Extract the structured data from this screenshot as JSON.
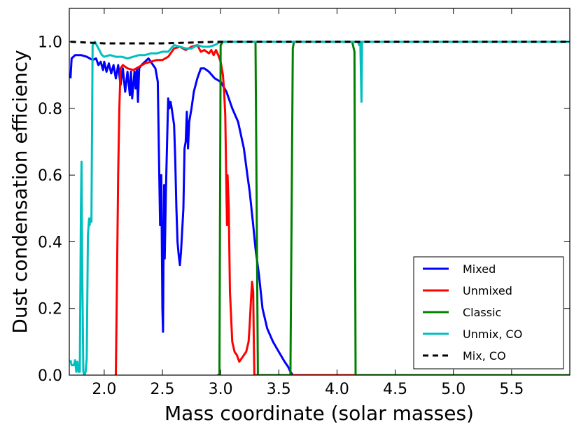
{
  "chart_data": {
    "type": "line",
    "title": "",
    "xlabel": "Mass coordinate (solar masses)",
    "ylabel": "Dust condensation efficiency",
    "xlim": [
      1.7,
      6.0
    ],
    "ylim": [
      0.0,
      1.1
    ],
    "xticks": [
      "2.0",
      "2.5",
      "3.0",
      "3.5",
      "4.0",
      "4.5",
      "5.0",
      "5.5"
    ],
    "yticks": [
      "0.0",
      "0.2",
      "0.4",
      "0.6",
      "0.8",
      "1.0"
    ],
    "grid": false,
    "legend_position": "lower-right",
    "series": [
      {
        "name": "Mixed",
        "color": "#0000ff",
        "dash": "solid",
        "points": [
          [
            1.71,
            0.89
          ],
          [
            1.72,
            0.95
          ],
          [
            1.75,
            0.96
          ],
          [
            1.8,
            0.96
          ],
          [
            1.85,
            0.955
          ],
          [
            1.9,
            0.945
          ],
          [
            1.93,
            0.95
          ],
          [
            1.95,
            0.93
          ],
          [
            1.97,
            0.94
          ],
          [
            1.99,
            0.915
          ],
          [
            2.0,
            0.94
          ],
          [
            2.02,
            0.91
          ],
          [
            2.04,
            0.935
          ],
          [
            2.06,
            0.905
          ],
          [
            2.08,
            0.93
          ],
          [
            2.1,
            0.89
          ],
          [
            2.12,
            0.93
          ],
          [
            2.14,
            0.87
          ],
          [
            2.16,
            0.92
          ],
          [
            2.18,
            0.85
          ],
          [
            2.2,
            0.91
          ],
          [
            2.22,
            0.84
          ],
          [
            2.23,
            0.91
          ],
          [
            2.24,
            0.83
          ],
          [
            2.26,
            0.91
          ],
          [
            2.27,
            0.86
          ],
          [
            2.28,
            0.92
          ],
          [
            2.29,
            0.82
          ],
          [
            2.3,
            0.92
          ],
          [
            2.32,
            0.93
          ],
          [
            2.35,
            0.94
          ],
          [
            2.38,
            0.95
          ],
          [
            2.4,
            0.94
          ],
          [
            2.42,
            0.93
          ],
          [
            2.44,
            0.92
          ],
          [
            2.46,
            0.88
          ],
          [
            2.48,
            0.45
          ],
          [
            2.49,
            0.6
          ],
          [
            2.5,
            0.2
          ],
          [
            2.505,
            0.13
          ],
          [
            2.51,
            0.4
          ],
          [
            2.515,
            0.57
          ],
          [
            2.52,
            0.35
          ],
          [
            2.53,
            0.55
          ],
          [
            2.54,
            0.7
          ],
          [
            2.55,
            0.83
          ],
          [
            2.56,
            0.8
          ],
          [
            2.57,
            0.82
          ],
          [
            2.58,
            0.8
          ],
          [
            2.6,
            0.75
          ],
          [
            2.61,
            0.65
          ],
          [
            2.62,
            0.5
          ],
          [
            2.63,
            0.4
          ],
          [
            2.64,
            0.36
          ],
          [
            2.65,
            0.33
          ],
          [
            2.66,
            0.37
          ],
          [
            2.68,
            0.5
          ],
          [
            2.69,
            0.68
          ],
          [
            2.7,
            0.7
          ],
          [
            2.71,
            0.79
          ],
          [
            2.72,
            0.68
          ],
          [
            2.73,
            0.76
          ],
          [
            2.75,
            0.8
          ],
          [
            2.77,
            0.85
          ],
          [
            2.8,
            0.89
          ],
          [
            2.83,
            0.92
          ],
          [
            2.86,
            0.92
          ],
          [
            2.9,
            0.91
          ],
          [
            2.95,
            0.89
          ],
          [
            3.0,
            0.88
          ],
          [
            3.05,
            0.85
          ],
          [
            3.1,
            0.8
          ],
          [
            3.15,
            0.76
          ],
          [
            3.2,
            0.68
          ],
          [
            3.23,
            0.6
          ],
          [
            3.25,
            0.55
          ],
          [
            3.28,
            0.45
          ],
          [
            3.3,
            0.38
          ],
          [
            3.33,
            0.3
          ],
          [
            3.36,
            0.2
          ],
          [
            3.4,
            0.14
          ],
          [
            3.45,
            0.1
          ],
          [
            3.5,
            0.07
          ],
          [
            3.55,
            0.04
          ],
          [
            3.58,
            0.025
          ],
          [
            3.6,
            0.01
          ],
          [
            3.62,
            0.0
          ],
          [
            6.0,
            0.0
          ]
        ]
      },
      {
        "name": "Unmixed",
        "color": "#ff0000",
        "dash": "solid",
        "points": [
          [
            2.09,
            0.0
          ],
          [
            2.1,
            0.0
          ],
          [
            2.11,
            0.3
          ],
          [
            2.12,
            0.6
          ],
          [
            2.13,
            0.8
          ],
          [
            2.14,
            0.92
          ],
          [
            2.16,
            0.93
          ],
          [
            2.2,
            0.92
          ],
          [
            2.25,
            0.915
          ],
          [
            2.3,
            0.925
          ],
          [
            2.35,
            0.935
          ],
          [
            2.4,
            0.94
          ],
          [
            2.45,
            0.945
          ],
          [
            2.5,
            0.945
          ],
          [
            2.55,
            0.955
          ],
          [
            2.6,
            0.98
          ],
          [
            2.65,
            0.985
          ],
          [
            2.7,
            0.975
          ],
          [
            2.75,
            0.985
          ],
          [
            2.8,
            0.99
          ],
          [
            2.83,
            0.97
          ],
          [
            2.86,
            0.975
          ],
          [
            2.9,
            0.965
          ],
          [
            2.92,
            0.975
          ],
          [
            2.94,
            0.96
          ],
          [
            2.96,
            0.975
          ],
          [
            2.98,
            0.96
          ],
          [
            3.0,
            0.94
          ],
          [
            3.02,
            0.9
          ],
          [
            3.03,
            0.85
          ],
          [
            3.04,
            0.78
          ],
          [
            3.05,
            0.55
          ],
          [
            3.055,
            0.45
          ],
          [
            3.06,
            0.6
          ],
          [
            3.07,
            0.5
          ],
          [
            3.08,
            0.25
          ],
          [
            3.1,
            0.1
          ],
          [
            3.12,
            0.07
          ],
          [
            3.14,
            0.06
          ],
          [
            3.16,
            0.04
          ],
          [
            3.18,
            0.05
          ],
          [
            3.2,
            0.06
          ],
          [
            3.22,
            0.07
          ],
          [
            3.24,
            0.1
          ],
          [
            3.25,
            0.15
          ],
          [
            3.26,
            0.22
          ],
          [
            3.27,
            0.28
          ],
          [
            3.28,
            0.25
          ],
          [
            3.285,
            0.1
          ],
          [
            3.29,
            0.0
          ],
          [
            6.0,
            0.0
          ]
        ]
      },
      {
        "name": "Classic",
        "color": "#008000",
        "dash": "solid",
        "points": [
          [
            2.97,
            0.0
          ],
          [
            2.99,
            0.0
          ],
          [
            3.0,
            0.99
          ],
          [
            3.02,
            1.0
          ],
          [
            3.3,
            1.0
          ],
          [
            3.32,
            0.0
          ],
          [
            3.33,
            0.0
          ],
          [
            3.6,
            0.0
          ],
          [
            3.62,
            0.98
          ],
          [
            3.63,
            1.0
          ],
          [
            4.13,
            1.0
          ],
          [
            4.15,
            0.97
          ],
          [
            4.16,
            0.0
          ],
          [
            6.0,
            0.0
          ]
        ]
      },
      {
        "name": "Unmix, CO",
        "color": "#00bfbf",
        "dash": "solid",
        "points": [
          [
            1.71,
            0.045
          ],
          [
            1.72,
            0.03
          ],
          [
            1.74,
            0.03
          ],
          [
            1.75,
            0.045
          ],
          [
            1.76,
            0.01
          ],
          [
            1.77,
            0.04
          ],
          [
            1.78,
            0.01
          ],
          [
            1.79,
            0.01
          ],
          [
            1.8,
            0.5
          ],
          [
            1.805,
            0.64
          ],
          [
            1.81,
            0.35
          ],
          [
            1.82,
            0.01
          ],
          [
            1.83,
            0.0
          ],
          [
            1.84,
            0.01
          ],
          [
            1.85,
            0.05
          ],
          [
            1.86,
            0.42
          ],
          [
            1.87,
            0.47
          ],
          [
            1.875,
            0.45
          ],
          [
            1.88,
            0.47
          ],
          [
            1.89,
            0.46
          ],
          [
            1.9,
            0.99
          ],
          [
            1.92,
            1.0
          ],
          [
            1.95,
            0.98
          ],
          [
            1.98,
            0.96
          ],
          [
            2.0,
            0.955
          ],
          [
            2.05,
            0.96
          ],
          [
            2.1,
            0.955
          ],
          [
            2.15,
            0.955
          ],
          [
            2.2,
            0.95
          ],
          [
            2.25,
            0.955
          ],
          [
            2.3,
            0.96
          ],
          [
            2.35,
            0.96
          ],
          [
            2.4,
            0.965
          ],
          [
            2.45,
            0.965
          ],
          [
            2.5,
            0.97
          ],
          [
            2.55,
            0.97
          ],
          [
            2.6,
            0.99
          ],
          [
            2.65,
            0.985
          ],
          [
            2.7,
            0.98
          ],
          [
            2.75,
            0.98
          ],
          [
            2.8,
            0.99
          ],
          [
            2.85,
            0.985
          ],
          [
            2.9,
            0.985
          ],
          [
            2.95,
            0.99
          ],
          [
            3.0,
            1.0
          ],
          [
            4.18,
            1.0
          ],
          [
            4.19,
            0.99
          ],
          [
            4.2,
            1.0
          ],
          [
            4.21,
            0.82
          ],
          [
            4.215,
            1.0
          ],
          [
            6.0,
            1.0
          ]
        ]
      },
      {
        "name": "Mix, CO",
        "color": "#000000",
        "dash": "dashed",
        "points": [
          [
            1.71,
            1.0
          ],
          [
            2.0,
            0.995
          ],
          [
            2.5,
            0.995
          ],
          [
            3.0,
            1.0
          ],
          [
            6.0,
            1.0
          ]
        ]
      }
    ]
  }
}
